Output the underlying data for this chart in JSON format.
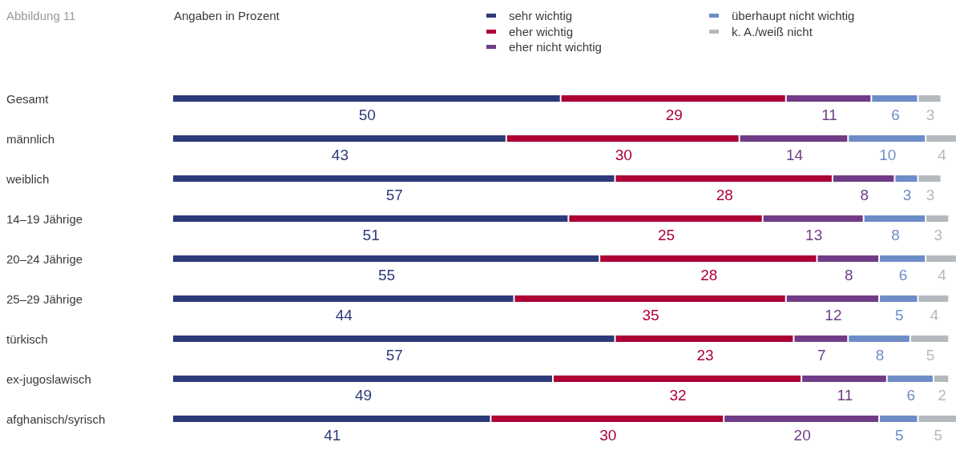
{
  "chart_data": {
    "type": "bar",
    "orientation": "horizontal",
    "stacked": true,
    "title": "Abbildung 11",
    "subtitle": "Angaben in Prozent",
    "categories": [
      "Gesamt",
      "männlich",
      "weiblich",
      "14–19 Jährige",
      "20–24 Jährige",
      "25–29 Jährige",
      "türkisch",
      "ex-jugoslawisch",
      "afghanisch/syrisch"
    ],
    "series": [
      {
        "name": "sehr wichtig",
        "color": "#2d3a7a",
        "values": [
          50,
          43,
          57,
          51,
          55,
          44,
          57,
          49,
          41
        ]
      },
      {
        "name": "eher wichtig",
        "color": "#ad0035",
        "values": [
          29,
          30,
          28,
          25,
          28,
          35,
          23,
          32,
          30
        ]
      },
      {
        "name": "eher nicht wichtig",
        "color": "#713c87",
        "values": [
          11,
          14,
          8,
          13,
          8,
          12,
          7,
          11,
          20
        ]
      },
      {
        "name": "überhaupt nicht wichtig",
        "color": "#6e8cc7",
        "values": [
          6,
          10,
          3,
          8,
          6,
          5,
          8,
          6,
          5
        ]
      },
      {
        "name": "k. A./weiß nicht",
        "color": "#b5b9bf",
        "values": [
          3,
          4,
          3,
          3,
          4,
          4,
          5,
          2,
          5
        ]
      }
    ],
    "data_labels": true,
    "legend": "top",
    "tick_labels": "y"
  }
}
